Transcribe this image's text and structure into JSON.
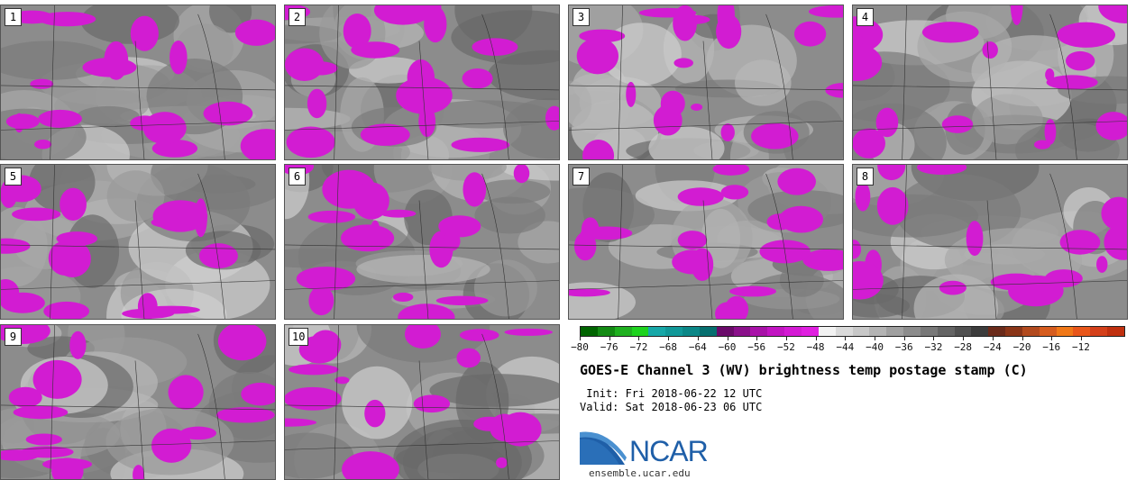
{
  "panels": [
    {
      "label": "1"
    },
    {
      "label": "2"
    },
    {
      "label": "3"
    },
    {
      "label": "4"
    },
    {
      "label": "5"
    },
    {
      "label": "6"
    },
    {
      "label": "7"
    },
    {
      "label": "8"
    },
    {
      "label": "9"
    },
    {
      "label": "10"
    }
  ],
  "colorbar": {
    "tick_labels": [
      "−80",
      "−76",
      "−72",
      "−68",
      "−64",
      "−60",
      "−56",
      "−52",
      "−48",
      "−44",
      "−40",
      "−36",
      "−32",
      "−28",
      "−24",
      "−20",
      "−16",
      "−12"
    ],
    "colors": [
      "#006400",
      "#138a13",
      "#1fb01f",
      "#1ed31e",
      "#17a8a8",
      "#109898",
      "#0b8787",
      "#066f6f",
      "#6a0a6a",
      "#8a108a",
      "#a812a8",
      "#c214c2",
      "#d41ad4",
      "#e020e0",
      "#f2f2f2",
      "#dadada",
      "#c8c8c8",
      "#b4b4b4",
      "#a0a0a0",
      "#8c8c8c",
      "#787878",
      "#646464",
      "#505050",
      "#3c3c3c",
      "#6a2a1a",
      "#8a3518",
      "#b24a1e",
      "#d65c1e",
      "#f07818",
      "#e8561a",
      "#d4401a",
      "#c0300f"
    ]
  },
  "title": "GOES-E Channel 3 (WV) brightness temp postage stamp (C)",
  "init_line": " Init: Fri 2018-06-22 12 UTC",
  "valid_line": "Valid: Sat 2018-06-23 06 UTC",
  "logo_text": "NCAR",
  "site": "ensemble.ucar.edu",
  "colors": {
    "magenta": "#d21cd2",
    "gray": "#8c8c8c",
    "ncar_blue": "#1f5fa8"
  }
}
